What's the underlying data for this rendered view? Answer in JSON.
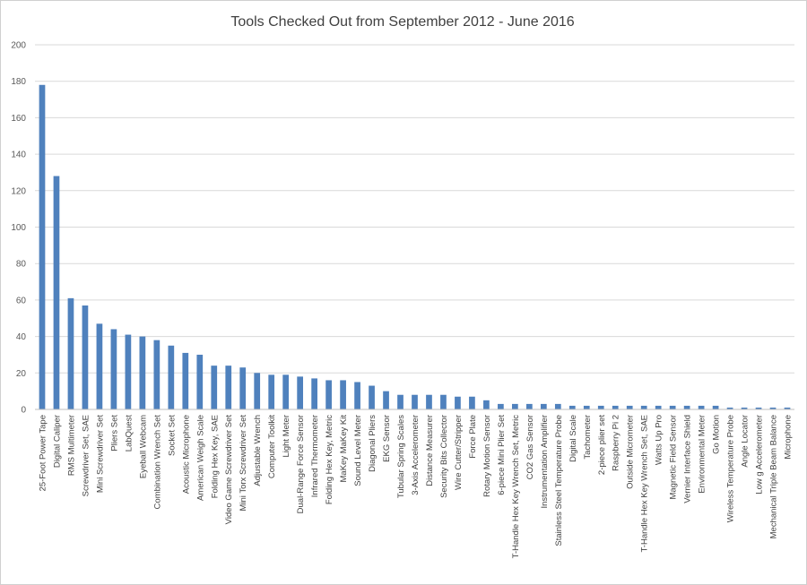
{
  "chart_data": {
    "type": "bar",
    "title": "Tools Checked Out from September 2012 - June 2016",
    "xlabel": "",
    "ylabel": "",
    "ylim": [
      0,
      200
    ],
    "yticks": [
      0,
      20,
      40,
      60,
      80,
      100,
      120,
      140,
      160,
      180,
      200
    ],
    "grid": true,
    "legend": "none",
    "bar_color": "#4f81bd",
    "categories": [
      "25-Foot Power Tape",
      "Digital Caliper",
      "RMS Multimeter",
      "Screwdriver Set, SAE",
      "Mini Screwdriver Set",
      "Pliers Set",
      "LabQuest",
      "Eyeball Webcam",
      "Combination Wrench Set",
      "Socket Set",
      "Acoustic Microphone",
      "American Weigh Scale",
      "Folding Hex Key, SAE",
      "Video Game Screwdriver Set",
      "Mini Torx Screwdriver Set",
      "Adjustable Wrench",
      "Computer Toolkit",
      "Light Meter",
      "Dual-Range Force Sensor",
      "Infrared Thermometer",
      "Folding Hex Key, Metric",
      "MaKey MaKey Kit",
      "Sound Level Meter",
      "Diagonal Pliers",
      "EKG Sensor",
      "Tubular Spring Scales",
      "3-Axis Accelerometer",
      "Distance Measurer",
      "Security Bits Collector",
      "Wire Cutter/Stripper",
      "Force Plate",
      "Rotary Motion Sensor",
      "6-piece Mini Plier Set",
      "T-Handle Hex Key Wrench Set, Metric",
      "CO2 Gas Sensor",
      "Instrumentation Amplifier",
      "Stainless Steel Temperature Probe",
      "Digital Scale",
      "Tachometer",
      "2-piece plier set",
      "Raspberry Pi 2",
      "Outside Micrometer",
      "T-Handle Hex Key Wrench Set, SAE",
      "Watts Up Pro",
      "Magnetic Field Sensor",
      "Vernier Interface Shield",
      "Environmental Meter",
      "Go Motion",
      "Wireless Temperature Probe",
      "Angle Locator",
      "Low g Accelerometer",
      "Mechanical Triple Beam Balance",
      "Microphone"
    ],
    "values": [
      178,
      128,
      61,
      57,
      47,
      44,
      41,
      40,
      38,
      35,
      31,
      30,
      24,
      24,
      23,
      20,
      19,
      19,
      18,
      17,
      16,
      16,
      15,
      13,
      10,
      8,
      8,
      8,
      8,
      7,
      7,
      5,
      3,
      3,
      3,
      3,
      3,
      2,
      2,
      2,
      2,
      2,
      2,
      2,
      2,
      2,
      2,
      2,
      1,
      1,
      1,
      1,
      1
    ]
  }
}
